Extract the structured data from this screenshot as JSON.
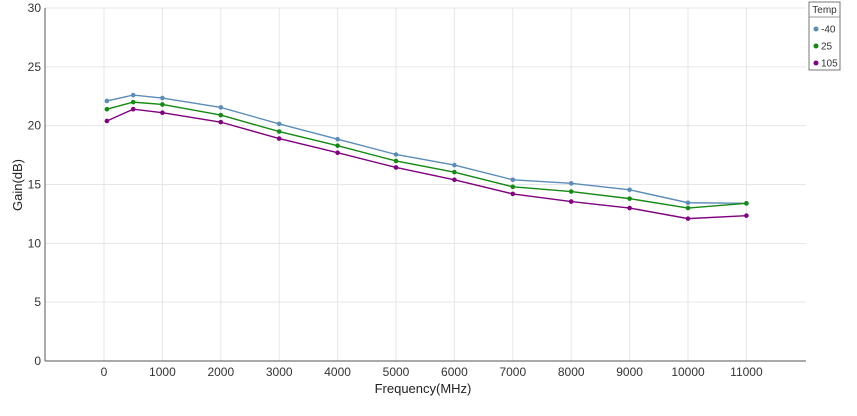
{
  "chart_data": {
    "type": "line",
    "xlabel": "Frequency(MHz)",
    "ylabel": "Gain(dB)",
    "ylim": [
      0,
      30
    ],
    "yticks": [
      0,
      5,
      10,
      15,
      20,
      25,
      30
    ],
    "xticks": [
      0,
      1000,
      2000,
      3000,
      4000,
      5000,
      6000,
      7000,
      8000,
      9000,
      10000,
      11000
    ],
    "grid": true,
    "legend": {
      "title": "Temp",
      "placement": "top-right"
    },
    "x": [
      50,
      500,
      1000,
      2000,
      3000,
      4000,
      5000,
      6000,
      7000,
      8000,
      9000,
      10000,
      11000
    ],
    "series": [
      {
        "name": "-40",
        "color": "#5b8db8",
        "values": [
          22.1,
          22.6,
          22.35,
          21.55,
          20.15,
          18.85,
          17.55,
          16.65,
          15.4,
          15.1,
          14.55,
          13.45,
          13.4
        ]
      },
      {
        "name": "25",
        "color": "#138a13",
        "values": [
          21.4,
          22.0,
          21.8,
          20.9,
          19.5,
          18.3,
          17.0,
          16.05,
          14.8,
          14.4,
          13.8,
          13.0,
          13.4
        ]
      },
      {
        "name": "105",
        "color": "#800080",
        "values": [
          20.4,
          21.4,
          21.1,
          20.3,
          18.9,
          17.7,
          16.45,
          15.4,
          14.2,
          13.55,
          13.0,
          12.1,
          12.35
        ]
      }
    ]
  }
}
